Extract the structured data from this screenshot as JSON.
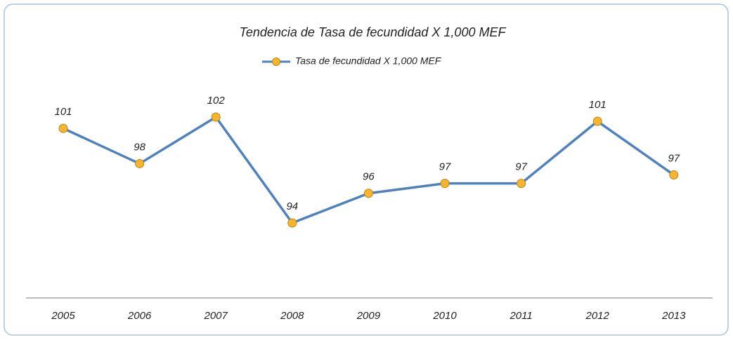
{
  "chart_data": {
    "type": "line",
    "title": "Tendencia de Tasa de fecundidad X 1,000 MEF",
    "categories": [
      "2005",
      "2006",
      "2007",
      "2008",
      "2009",
      "2010",
      "2011",
      "2012",
      "2013"
    ],
    "series": [
      {
        "name": "Tasa de fecundidad X 1,000 MEF",
        "color": "#4f81bd",
        "marker_color": "#f7b52c",
        "values": [
          100.7,
          98.2,
          101.5,
          94.0,
          96.1,
          96.8,
          96.8,
          101.2,
          97.4
        ],
        "value_labels": [
          "101",
          "98",
          "102",
          "94",
          "96",
          "97",
          "97",
          "101",
          "97"
        ]
      }
    ],
    "legend": "top"
  }
}
